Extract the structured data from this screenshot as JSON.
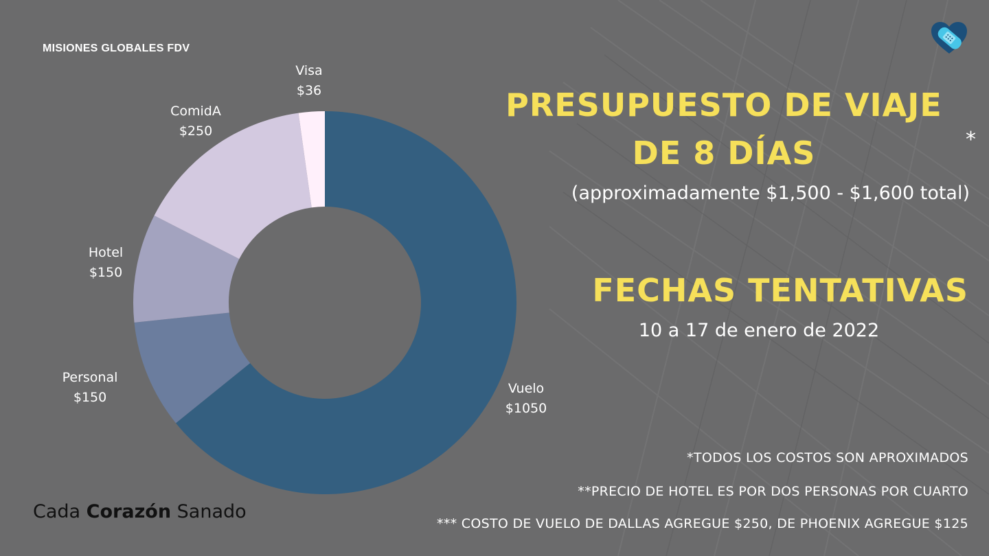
{
  "org_name": "MISIONES GLOBALES FDV",
  "title_line1": "PRESUPUESTO DE VIAJE",
  "title_line2": "DE 8 DÍAS",
  "title_asterisk": "*",
  "subtitle": "(approximadamente $1,500 - $1,600 total)",
  "dates_title": "FECHAS TENTATIVAS",
  "dates": "10 a 17 de enero de 2022",
  "notes": [
    "*TODOS LOS COSTOS SON APROXIMADOS",
    "**PRECIO DE HOTEL ES POR DOS PERSONAS POR CUARTO",
    "*** COSTO DE VUELO DE DALLAS AGREGUE $250, DE PHOENIX AGREGUE $125"
  ],
  "tagline": {
    "pre": "Cada ",
    "bold": "Corazón",
    "post": " Sanado"
  },
  "logo_icon": "heart-bandage-icon",
  "colors": {
    "background": "#6b6b6c",
    "title": "#f6e05a"
  },
  "chart_data": {
    "type": "pie",
    "variant": "donut",
    "start": "top, clockwise",
    "slices": [
      {
        "name": "Vuelo",
        "value": 1050,
        "label": "$1050",
        "color": "#345f80"
      },
      {
        "name": "Personal",
        "value": 150,
        "label": "$150",
        "color": "#6b7d9e"
      },
      {
        "name": "Hotel",
        "value": 150,
        "label": "$150",
        "color": "#a3a3bf"
      },
      {
        "name": "ComidA",
        "value": 250,
        "label": "$250",
        "color": "#d3c9e0"
      },
      {
        "name": "Visa",
        "value": 36,
        "label": "$36",
        "color": "#fff0fb"
      }
    ]
  }
}
